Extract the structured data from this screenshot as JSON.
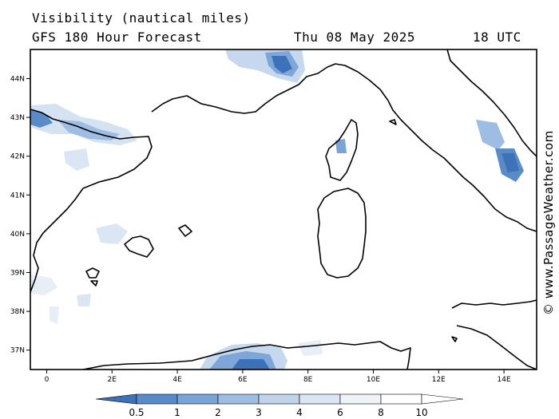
{
  "header": {
    "title": "Visibility (nautical miles)",
    "subtitle": "GFS 180 Hour Forecast",
    "date": "Thu 08 May 2025",
    "hour": "18 UTC"
  },
  "credit": "© www.PassageWeather.com",
  "map": {
    "lon_range": [
      -0.5,
      15
    ],
    "lat_range": [
      36.5,
      44.75
    ],
    "lon_ticks": [
      {
        "value": 0,
        "label": "0"
      },
      {
        "value": 2,
        "label": "2E"
      },
      {
        "value": 4,
        "label": "4E"
      },
      {
        "value": 6,
        "label": "6E"
      },
      {
        "value": 8,
        "label": "8E"
      },
      {
        "value": 10,
        "label": "10E"
      },
      {
        "value": 12,
        "label": "12E"
      },
      {
        "value": 14,
        "label": "14E"
      }
    ],
    "lat_ticks": [
      {
        "value": 37,
        "label": "37N"
      },
      {
        "value": 38,
        "label": "38N"
      },
      {
        "value": 39,
        "label": "39N"
      },
      {
        "value": 40,
        "label": "40N"
      },
      {
        "value": 41,
        "label": "41N"
      },
      {
        "value": 42,
        "label": "42N"
      },
      {
        "value": 43,
        "label": "43N"
      },
      {
        "value": 44,
        "label": "44N"
      }
    ]
  },
  "colorbar": {
    "levels": [
      "0.5",
      "1",
      "2",
      "3",
      "4",
      "6",
      "8",
      "10"
    ],
    "colors": [
      "#3e72b8",
      "#5a8bc9",
      "#7aa3d6",
      "#9dbde2",
      "#bfd3eb",
      "#dae6f3",
      "#eef3f9",
      "#ffffff"
    ]
  }
}
